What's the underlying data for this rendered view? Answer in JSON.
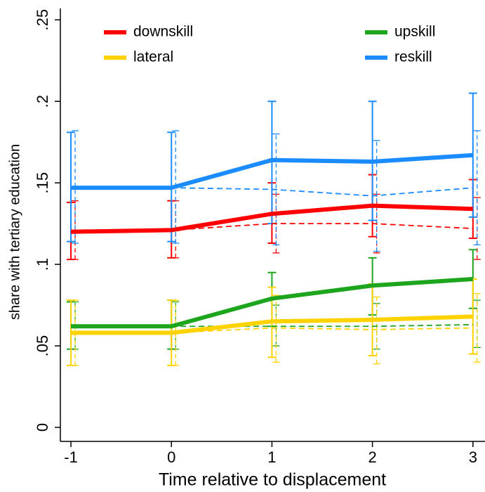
{
  "chart_data": {
    "type": "line",
    "xlabel": "Time relative to displacement",
    "ylabel": "share with tertiary education",
    "x": [
      -1,
      0,
      1,
      2,
      3
    ],
    "xlim": [
      -1.105,
      3.12
    ],
    "ylim": [
      -0.0086,
      0.257
    ],
    "xticks": [
      -1,
      0,
      1,
      2,
      3
    ],
    "yticks": [
      0,
      {
        "value": 0.05,
        "label": ".05"
      },
      {
        "value": 0.1,
        "label": ".1"
      },
      {
        "value": 0.15,
        "label": ".15"
      },
      {
        "value": 0.2,
        "label": ".2"
      },
      {
        "value": 0.25,
        "label": ".25"
      }
    ],
    "series": [
      {
        "name": "downskill",
        "color": "#ff0000",
        "values": [
          0.12,
          0.121,
          0.131,
          0.136,
          0.134
        ],
        "lower": [
          0.103,
          0.104,
          0.113,
          0.117,
          0.116
        ],
        "upper": [
          0.138,
          0.139,
          0.15,
          0.155,
          0.152
        ],
        "dashed": {
          "values": [
            0.12,
            0.121,
            0.125,
            0.125,
            0.122
          ],
          "lower": [
            0.103,
            0.104,
            0.107,
            0.107,
            0.103
          ],
          "upper": [
            0.139,
            0.139,
            0.143,
            0.143,
            0.141
          ]
        }
      },
      {
        "name": "upskill",
        "color": "#1ea51e",
        "values": [
          0.062,
          0.062,
          0.079,
          0.087,
          0.091
        ],
        "lower": [
          0.048,
          0.048,
          0.062,
          0.069,
          0.073
        ],
        "upper": [
          0.077,
          0.078,
          0.095,
          0.104,
          0.109
        ],
        "dashed": {
          "values": [
            0.062,
            0.062,
            0.062,
            0.062,
            0.063
          ],
          "lower": [
            0.048,
            0.048,
            0.05,
            0.048,
            0.049
          ],
          "upper": [
            0.077,
            0.077,
            0.075,
            0.076,
            0.078
          ]
        }
      },
      {
        "name": "lateral",
        "color": "#ffd200",
        "values": [
          0.058,
          0.058,
          0.065,
          0.066,
          0.068
        ],
        "lower": [
          0.038,
          0.038,
          0.043,
          0.044,
          0.045
        ],
        "upper": [
          0.078,
          0.078,
          0.086,
          0.088,
          0.091
        ],
        "dashed": {
          "values": [
            0.058,
            0.058,
            0.061,
            0.06,
            0.061
          ],
          "lower": [
            0.038,
            0.038,
            0.04,
            0.039,
            0.04
          ],
          "upper": [
            0.078,
            0.078,
            0.081,
            0.08,
            0.082
          ]
        }
      },
      {
        "name": "reskill",
        "color": "#1a8cff",
        "values": [
          0.147,
          0.147,
          0.164,
          0.163,
          0.167
        ],
        "lower": [
          0.114,
          0.114,
          0.125,
          0.127,
          0.129
        ],
        "upper": [
          0.181,
          0.181,
          0.2,
          0.2,
          0.205
        ],
        "dashed": {
          "values": [
            0.147,
            0.147,
            0.146,
            0.142,
            0.147
          ],
          "lower": [
            0.113,
            0.113,
            0.112,
            0.108,
            0.112
          ],
          "upper": [
            0.182,
            0.182,
            0.18,
            0.176,
            0.182
          ]
        }
      }
    ]
  }
}
